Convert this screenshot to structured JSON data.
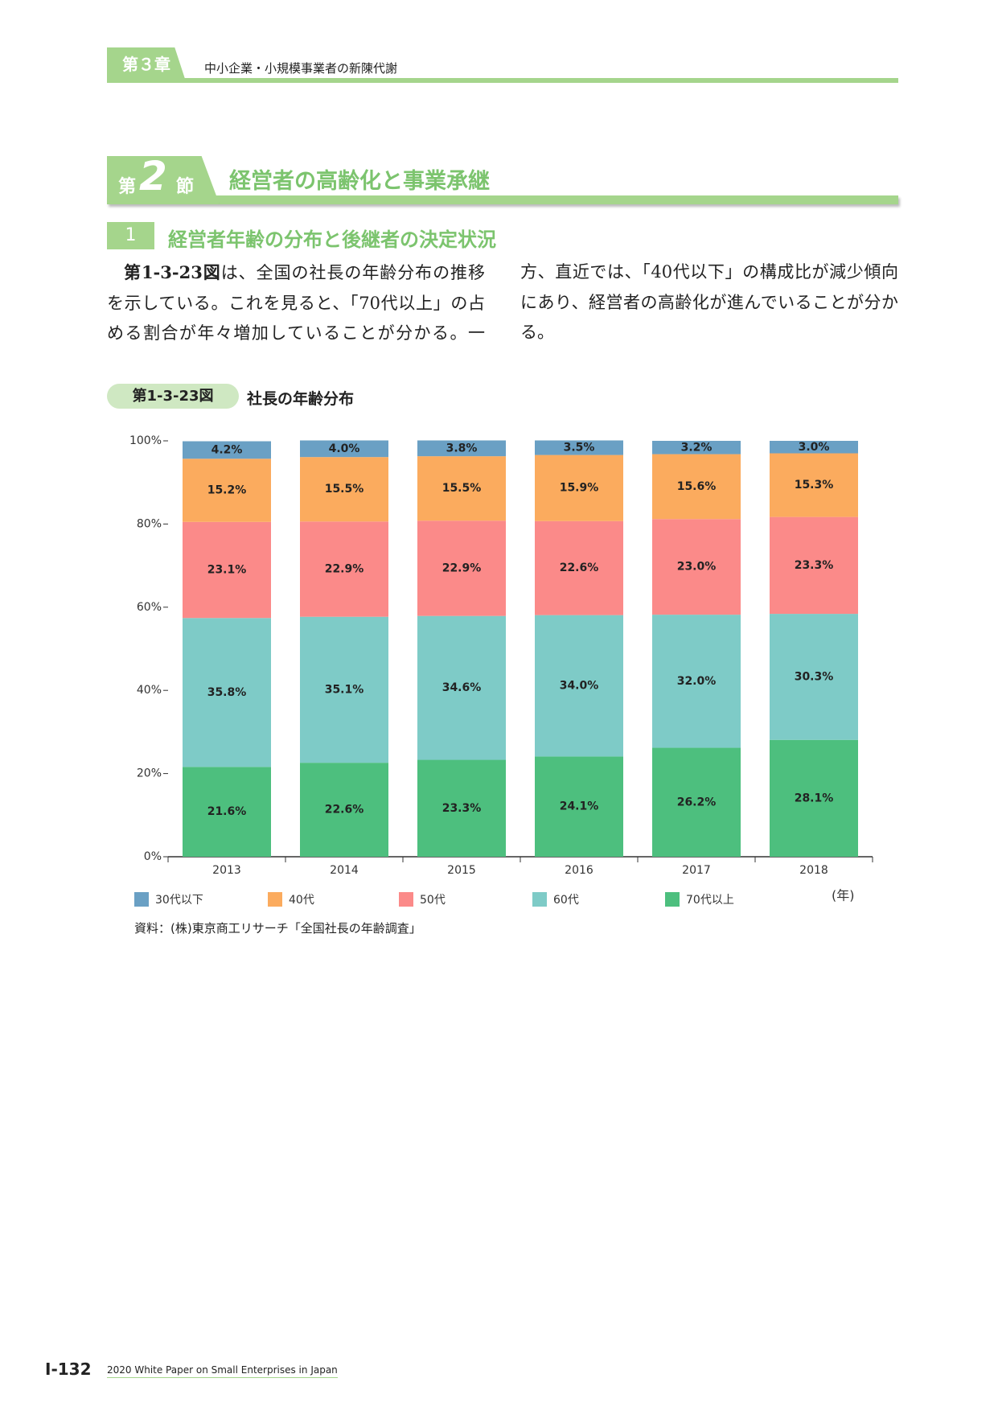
{
  "header": {
    "chapter": "第３章",
    "title": "中小企業・小規模事業者の新陳代謝"
  },
  "section": {
    "label_prefix": "第",
    "label_number": "2",
    "label_suffix": "節",
    "title": "経営者の高齢化と事業承継"
  },
  "subsection": {
    "number": "1",
    "title": "経営者年齢の分布と後継者の決定状況"
  },
  "paragraph": {
    "figure_ref": "第1-3-23図",
    "text": "は、全国の社長の年齢分布の推移を示している。これを見ると、「70代以上」の占める割合が年々増加していることが分かる。一方、直近では、「40代以下」の構成比が減少傾向にあり、経営者の高齢化が進んでいることが分かる。"
  },
  "figure": {
    "label": "第1-3-23図",
    "title": "社長の年齢分布",
    "source": "資料：(株)東京商工リサーチ「全国社長の年齢調査」"
  },
  "chart_data": {
    "type": "stacked_bar",
    "categories": [
      "2013",
      "2014",
      "2015",
      "2016",
      "2017",
      "2018"
    ],
    "x_unit": "(年)",
    "series": [
      {
        "name": "30代以下",
        "color": "#6aa0c4",
        "values": [
          4.2,
          4.0,
          3.8,
          3.5,
          3.2,
          3.0
        ],
        "value_labels": [
          "4.2%",
          "4.0%",
          "3.8%",
          "3.5%",
          "3.2%",
          "3.0%"
        ]
      },
      {
        "name": "40代",
        "color": "#fbab5e",
        "values": [
          15.2,
          15.5,
          15.5,
          15.9,
          15.6,
          15.3
        ],
        "value_labels": [
          "15.2%",
          "15.5%",
          "15.5%",
          "15.9%",
          "15.6%",
          "15.3%"
        ]
      },
      {
        "name": "50代",
        "color": "#fb8a89",
        "values": [
          23.1,
          22.9,
          22.9,
          22.6,
          23.0,
          23.3
        ],
        "value_labels": [
          "23.1%",
          "22.9%",
          "22.9%",
          "22.6%",
          "23.0%",
          "23.3%"
        ]
      },
      {
        "name": "60代",
        "color": "#7ecbc7",
        "values": [
          35.8,
          35.1,
          34.6,
          34.0,
          32.0,
          30.3
        ],
        "value_labels": [
          "35.8%",
          "35.1%",
          "34.6%",
          "34.0%",
          "32.0%",
          "30.3%"
        ]
      },
      {
        "name": "70代以上",
        "color": "#4dbf7e",
        "values": [
          21.6,
          22.6,
          23.3,
          24.1,
          26.2,
          28.1
        ],
        "value_labels": [
          "21.6%",
          "22.6%",
          "23.3%",
          "24.1%",
          "26.2%",
          "28.1%"
        ]
      }
    ],
    "ylim": [
      0,
      100
    ],
    "yticks": [
      {
        "value": 0,
        "label": "0%"
      },
      {
        "value": 20,
        "label": "20%"
      },
      {
        "value": 40,
        "label": "40%"
      },
      {
        "value": 60,
        "label": "60%"
      },
      {
        "value": 80,
        "label": "80%"
      },
      {
        "value": 100,
        "label": "100%"
      }
    ]
  },
  "footer": {
    "page": "Ⅰ-132",
    "publication": "2020 White Paper on Small Enterprises in Japan"
  }
}
